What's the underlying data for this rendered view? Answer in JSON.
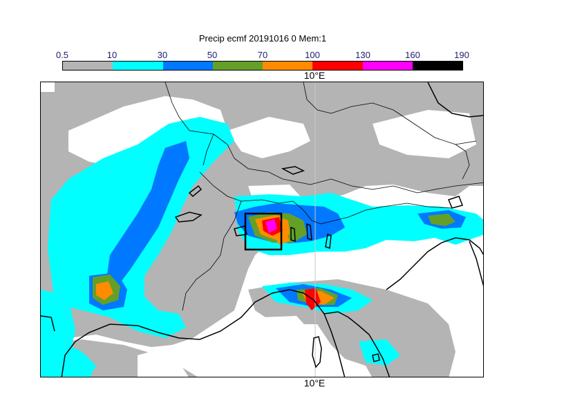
{
  "title": "Precip ecmf 20191016 0 Mem:1",
  "colorbar": {
    "labels": [
      "0.5",
      "10",
      "30",
      "50",
      "70",
      "100",
      "130",
      "160",
      "190"
    ],
    "colors": [
      "#b4b4b4",
      "#00ffff",
      "#0078ff",
      "#64a028",
      "#ff8c00",
      "#ff0000",
      "#ff00ff",
      "#000000"
    ]
  },
  "map": {
    "lon_label_top": "10°E",
    "lon_label_bottom": "10°E",
    "colors": {
      "grey": "#b4b4b4",
      "cyan": "#00ffff",
      "blue": "#0078ff",
      "green": "#64a028",
      "orange": "#ff8c00",
      "red": "#ff0000",
      "magenta": "#ff00ff"
    }
  }
}
